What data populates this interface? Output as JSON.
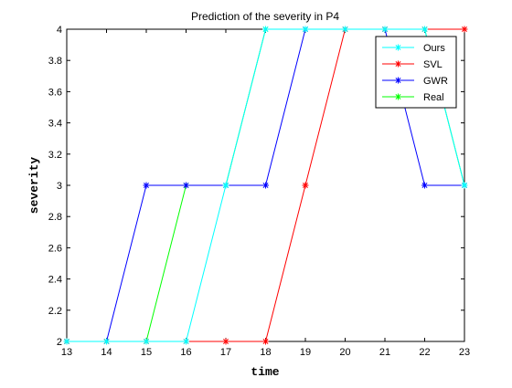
{
  "chart_data": {
    "type": "line",
    "title": "Prediction of  the severity in  P4",
    "xlabel": "time",
    "ylabel": "severity",
    "xlim": [
      13,
      23
    ],
    "ylim": [
      2,
      4
    ],
    "x_ticks": [
      13,
      14,
      15,
      16,
      17,
      18,
      19,
      20,
      21,
      22,
      23
    ],
    "y_ticks": [
      2,
      2.2,
      2.4,
      2.6,
      2.8,
      3,
      3.2,
      3.4,
      3.6,
      3.8,
      4
    ],
    "y_tick_labels": [
      "2",
      "2.2",
      "2.4",
      "2.6",
      "2.8",
      "3",
      "3.2",
      "3.4",
      "3.6",
      "3.8",
      "4"
    ],
    "x_tick_labels": [
      "13",
      "14",
      "15",
      "16",
      "17",
      "18",
      "19",
      "20",
      "21",
      "22",
      "23"
    ],
    "grid": false,
    "legend_position": "top-right",
    "x": [
      13,
      14,
      15,
      16,
      17,
      18,
      19,
      20,
      21,
      22,
      23
    ],
    "series": [
      {
        "name": "Ours",
        "color": "#00ffff",
        "values": [
          2,
          2,
          2,
          2,
          3,
          4,
          4,
          4,
          4,
          4,
          3
        ]
      },
      {
        "name": "SVL",
        "color": "#ff0000",
        "values": [
          2,
          2,
          2,
          2,
          2,
          2,
          3,
          4,
          4,
          4,
          4
        ]
      },
      {
        "name": "GWR",
        "color": "#0000ff",
        "values": [
          2,
          2,
          3,
          3,
          3,
          3,
          4,
          4,
          4,
          3,
          3
        ]
      },
      {
        "name": "Real",
        "color": "#00ff00",
        "values": [
          2,
          2,
          2,
          3,
          3,
          4,
          4,
          4,
          4,
          4,
          3
        ]
      }
    ]
  }
}
